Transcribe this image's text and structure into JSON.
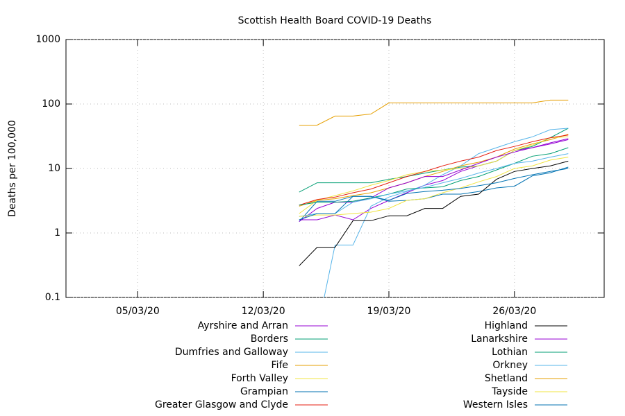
{
  "chart_data": {
    "type": "line",
    "title": "Scottish Health Board COVID-19 Deaths",
    "ylabel": "Deaths per 100,000",
    "yscale": "log",
    "grid": true,
    "x": [
      "2020-03-14",
      "2020-03-15",
      "2020-03-16",
      "2020-03-17",
      "2020-03-18",
      "2020-03-19",
      "2020-03-20",
      "2020-03-21",
      "2020-03-22",
      "2020-03-23",
      "2020-03-24",
      "2020-03-25",
      "2020-03-26",
      "2020-03-27",
      "2020-03-28",
      "2020-03-29"
    ],
    "xlim": [
      "2020-03-01",
      "2020-03-31"
    ],
    "xticks": [
      {
        "value": "2020-03-05",
        "label": "05/03/20"
      },
      {
        "value": "2020-03-12",
        "label": "12/03/20"
      },
      {
        "value": "2020-03-19",
        "label": "19/03/20"
      },
      {
        "value": "2020-03-26",
        "label": "26/03/20"
      }
    ],
    "ylim": [
      0.1,
      1000
    ],
    "yticks": [
      0.1,
      1,
      10,
      100,
      1000
    ],
    "series": [
      {
        "name": "Ayrshire and Arran",
        "color": "#9400d3",
        "values": [
          1.6,
          1.6,
          1.9,
          1.6,
          2.4,
          3.2,
          4.2,
          5.5,
          6.5,
          9,
          11,
          13,
          19,
          21,
          24,
          28
        ]
      },
      {
        "name": "Borders",
        "color": "#009e73",
        "values": [
          4.3,
          6,
          6,
          6,
          6,
          6.8,
          7.5,
          8.5,
          9.5,
          10.5,
          11,
          13,
          19,
          22,
          30,
          42
        ]
      },
      {
        "name": "Dumfries and Galloway",
        "color": "#56b4e9",
        "values": [
          null,
          0.03,
          0.65,
          0.65,
          2.6,
          3.6,
          4.4,
          5.5,
          8,
          11,
          17,
          21,
          26,
          31,
          40,
          42
        ]
      },
      {
        "name": "Fife",
        "color": "#e69f00",
        "values": [
          2.6,
          3.2,
          3.4,
          3.8,
          4.2,
          5,
          6,
          7.5,
          9,
          11,
          12.5,
          15,
          20,
          24,
          28,
          34
        ]
      },
      {
        "name": "Forth Valley",
        "color": "#f0e442",
        "values": [
          2,
          3.2,
          3.8,
          4.5,
          5.5,
          6.5,
          8,
          9,
          9.5,
          10,
          11,
          13,
          19,
          23,
          30,
          31
        ]
      },
      {
        "name": "Grampian",
        "color": "#0072b2",
        "values": [
          1.5,
          3.1,
          3.1,
          3.7,
          3.7,
          3.1,
          3.2,
          3.4,
          4,
          4,
          4.4,
          5,
          5.3,
          7.7,
          8.6,
          10.5
        ]
      },
      {
        "name": "Greater Glasgow and Clyde",
        "color": "#e51e10",
        "values": [
          2.7,
          3.3,
          3.6,
          4.2,
          4.8,
          6,
          7.5,
          9,
          11,
          13,
          15,
          19,
          22,
          26,
          30,
          33
        ]
      },
      {
        "name": "Highland",
        "color": "#000000",
        "values": [
          0.31,
          0.6,
          0.6,
          1.55,
          1.55,
          1.85,
          1.85,
          2.4,
          2.4,
          3.7,
          4,
          6.8,
          9,
          10,
          11,
          13
        ]
      },
      {
        "name": "Lanarkshire",
        "color": "#9400d3",
        "values": [
          1.5,
          2.4,
          3,
          3,
          3.5,
          5,
          6,
          7.5,
          7.5,
          9.5,
          12,
          15,
          18,
          21,
          25,
          29
        ]
      },
      {
        "name": "Lothian",
        "color": "#009e73",
        "values": [
          2.7,
          3,
          3,
          3.1,
          3.5,
          4,
          4.8,
          5,
          5.2,
          6.5,
          7.5,
          9.5,
          12,
          15.5,
          17,
          21
        ]
      },
      {
        "name": "Orkney",
        "color": "#56b4e9",
        "values": [
          1.8,
          2,
          2,
          3,
          3.4,
          4,
          4.5,
          5.1,
          6,
          7,
          8.5,
          10,
          12,
          13,
          15,
          17
        ]
      },
      {
        "name": "Shetland",
        "color": "#e69f00",
        "values": [
          47,
          47,
          65,
          65,
          70,
          104,
          104,
          104,
          104,
          104,
          104,
          104,
          104,
          104,
          115,
          115
        ]
      },
      {
        "name": "Tayside",
        "color": "#f0e442",
        "values": [
          1.8,
          1.9,
          1.9,
          2,
          2.1,
          2.4,
          3.2,
          3.4,
          4.2,
          5,
          6.2,
          7.5,
          10,
          11,
          13.5,
          15
        ]
      },
      {
        "name": "Western Isles",
        "color": "#0072b2",
        "values": [
          1.6,
          2,
          2,
          3.7,
          3.7,
          3.2,
          4.1,
          4.4,
          4.6,
          4.9,
          5.4,
          6,
          7,
          8,
          9,
          10
        ]
      }
    ]
  }
}
